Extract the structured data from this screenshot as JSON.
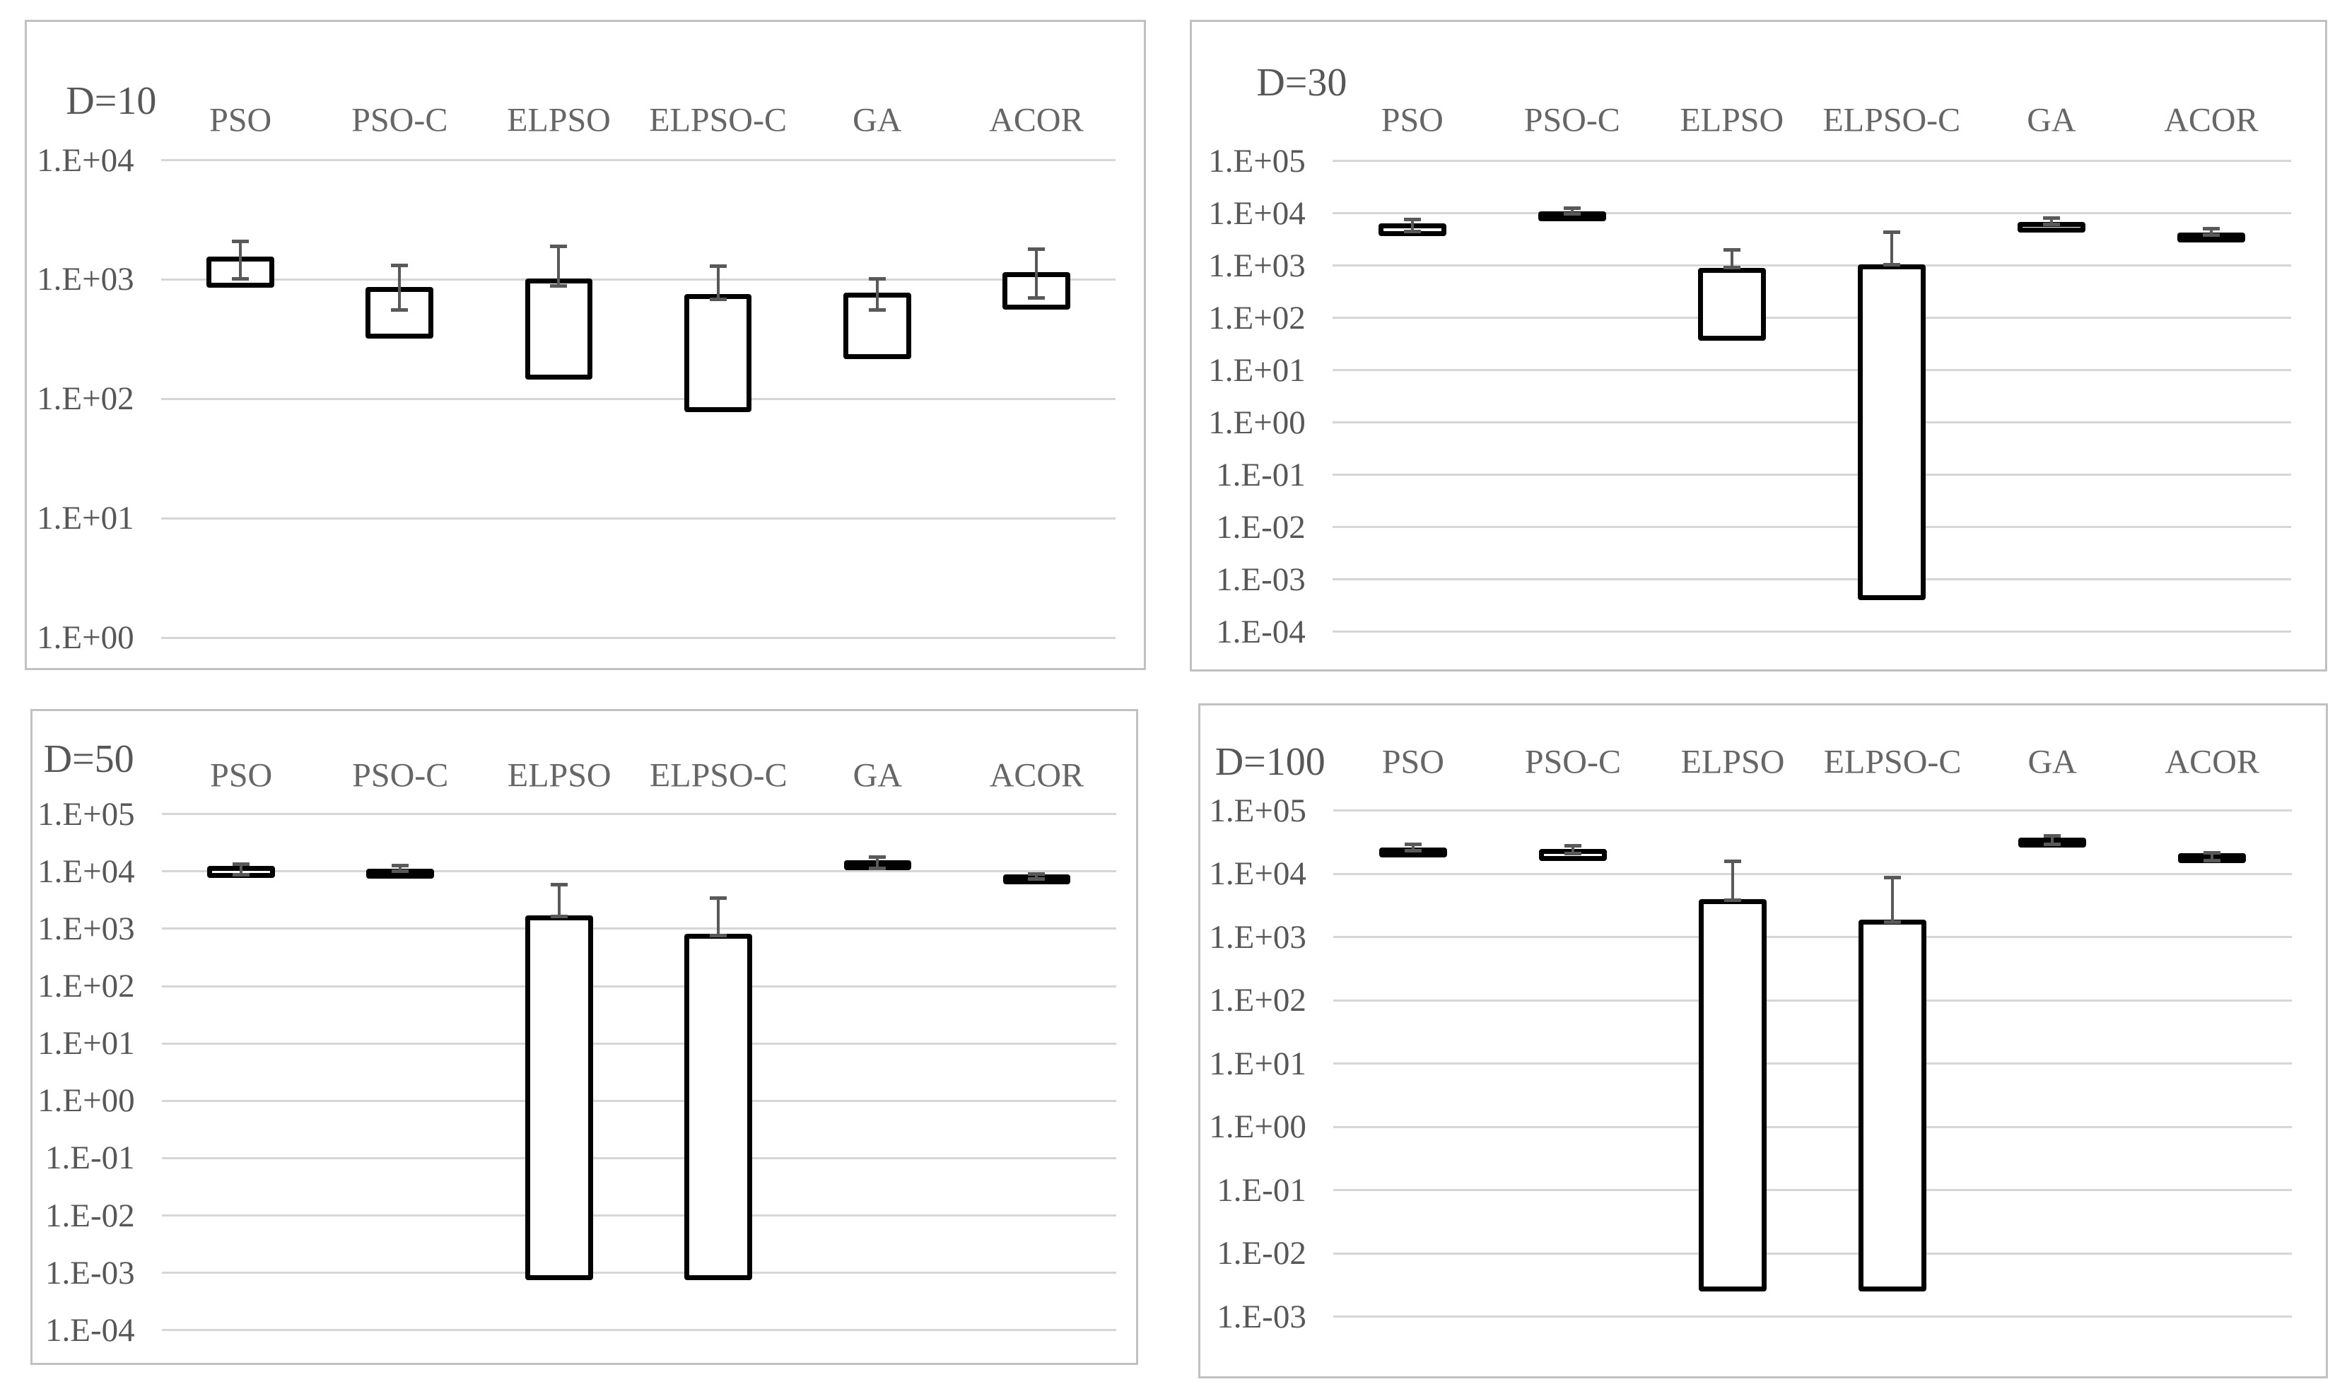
{
  "figure": {
    "background": "#ffffff",
    "description_panels": [
      "D=10",
      "D=30",
      "D=50",
      "D=100"
    ]
  },
  "colors": {
    "text": "#575757",
    "category_text": "#666666",
    "gridline": "#d6d6d6",
    "panel_border": "#c1c1c1",
    "bar_border": "#020202",
    "bar_fill": "#ffffff",
    "error_bar": "#595959"
  },
  "chart_data": [
    {
      "type": "bar",
      "subtype": "floating-range-bars-with-error-whiskers",
      "title": "D=10",
      "y_scale": "log10",
      "ylim_exp": [
        4,
        0
      ],
      "y_tick_labels": [
        "1.E+04",
        "1.E+03",
        "1.E+02",
        "1.E+01",
        "1.E+00"
      ],
      "categories": [
        "PSO",
        "PSO-C",
        "ELPSO",
        "ELPSO-C",
        "GA",
        "ACOR"
      ],
      "grid": true,
      "legend": "none",
      "bars": [
        {
          "category": "PSO",
          "box_low": 850,
          "box_high": 1560,
          "whisker_low": 1000,
          "whisker_high": 2100
        },
        {
          "category": "PSO-C",
          "box_low": 320,
          "box_high": 870,
          "whisker_low": 550,
          "whisker_high": 1330
        },
        {
          "category": "ELPSO",
          "box_low": 145,
          "box_high": 1020,
          "whisker_low": 880,
          "whisker_high": 1900
        },
        {
          "category": "ELPSO-C",
          "box_low": 77,
          "box_high": 760,
          "whisker_low": 680,
          "whisker_high": 1310
        },
        {
          "category": "GA",
          "box_low": 215,
          "box_high": 780,
          "whisker_low": 550,
          "whisker_high": 1020
        },
        {
          "category": "ACOR",
          "box_low": 560,
          "box_high": 1150,
          "whisker_low": 700,
          "whisker_high": 1800
        }
      ]
    },
    {
      "type": "bar",
      "subtype": "floating-range-bars-with-error-whiskers",
      "title": "D=30",
      "y_scale": "log10",
      "ylim_exp": [
        5,
        -4
      ],
      "y_tick_labels": [
        "1.E+05",
        "1.E+04",
        "1.E+03",
        "1.E+02",
        "1.E+01",
        "1.E+00",
        "1.E-01",
        "1.E-02",
        "1.E-03",
        "1.E-04"
      ],
      "categories": [
        "PSO",
        "PSO-C",
        "ELPSO",
        "ELPSO-C",
        "GA",
        "ACOR"
      ],
      "grid": true,
      "legend": "none",
      "bars": [
        {
          "category": "PSO",
          "box_low": 3700,
          "box_high": 6500,
          "whisker_low": 4400,
          "whisker_high": 7800
        },
        {
          "category": "PSO-C",
          "box_low": 7200,
          "box_high": 11000,
          "whisker_low": 9700,
          "whisker_high": 13000
        },
        {
          "category": "ELPSO",
          "box_low": 37,
          "box_high": 910,
          "whisker_low": 900,
          "whisker_high": 2050
        },
        {
          "category": "ELPSO-C",
          "box_low": 0.0004,
          "box_high": 1050,
          "whisker_low": 1030,
          "whisker_high": 4500
        },
        {
          "category": "GA",
          "box_low": 4300,
          "box_high": 6800,
          "whisker_low": 6000,
          "whisker_high": 8300
        },
        {
          "category": "ACOR",
          "box_low": 2800,
          "box_high": 4300,
          "whisker_low": 3800,
          "whisker_high": 5200
        }
      ]
    },
    {
      "type": "bar",
      "subtype": "floating-range-bars-with-error-whiskers",
      "title": "D=50",
      "y_scale": "log10",
      "ylim_exp": [
        5,
        -4
      ],
      "y_tick_labels": [
        "1.E+05",
        "1.E+04",
        "1.E+03",
        "1.E+02",
        "1.E+01",
        "1.E+00",
        "1.E-01",
        "1.E-02",
        "1.E-03",
        "1.E-04"
      ],
      "categories": [
        "PSO",
        "PSO-C",
        "ELPSO",
        "ELPSO-C",
        "GA",
        "ACOR"
      ],
      "grid": true,
      "legend": "none",
      "bars": [
        {
          "category": "PSO",
          "box_low": 7800,
          "box_high": 12500,
          "whisker_low": 8700,
          "whisker_high": 13700
        },
        {
          "category": "PSO-C",
          "box_low": 7700,
          "box_high": 11000,
          "whisker_low": 10000,
          "whisker_high": 13000
        },
        {
          "category": "ELPSO",
          "box_low": 0.00075,
          "box_high": 1700,
          "whisker_low": 1600,
          "whisker_high": 5900
        },
        {
          "category": "ELPSO-C",
          "box_low": 0.00075,
          "box_high": 810,
          "whisker_low": 760,
          "whisker_high": 3500
        },
        {
          "category": "GA",
          "box_low": 10500,
          "box_high": 15700,
          "whisker_low": 11000,
          "whisker_high": 18000
        },
        {
          "category": "ACOR",
          "box_low": 6200,
          "box_high": 8900,
          "whisker_low": 7200,
          "whisker_high": 9200
        }
      ]
    },
    {
      "type": "bar",
      "subtype": "floating-range-bars-with-error-whiskers",
      "title": "D=100",
      "y_scale": "log10",
      "ylim_exp": [
        5,
        -3
      ],
      "y_tick_labels": [
        "1.E+05",
        "1.E+04",
        "1.E+03",
        "1.E+02",
        "1.E+01",
        "1.E+00",
        "1.E-01",
        "1.E-02",
        "1.E-03"
      ],
      "categories": [
        "PSO",
        "PSO-C",
        "ELPSO",
        "ELPSO-C",
        "GA",
        "ACOR"
      ],
      "grid": true,
      "legend": "none",
      "bars": [
        {
          "category": "PSO",
          "box_low": 20000,
          "box_high": 26000,
          "whisker_low": 23000,
          "whisker_high": 30000
        },
        {
          "category": "PSO-C",
          "box_low": 16000,
          "box_high": 25000,
          "whisker_low": 21000,
          "whisker_high": 28000
        },
        {
          "category": "ELPSO",
          "box_low": 0.0025,
          "box_high": 4000,
          "whisker_low": 3800,
          "whisker_high": 16000
        },
        {
          "category": "ELPSO-C",
          "box_low": 0.0025,
          "box_high": 1900,
          "whisker_low": 1700,
          "whisker_high": 8800
        },
        {
          "category": "GA",
          "box_low": 27000,
          "box_high": 38000,
          "whisker_low": 29000,
          "whisker_high": 41000
        },
        {
          "category": "ACOR",
          "box_low": 15500,
          "box_high": 21200,
          "whisker_low": 16000,
          "whisker_high": 22000
        }
      ]
    }
  ]
}
